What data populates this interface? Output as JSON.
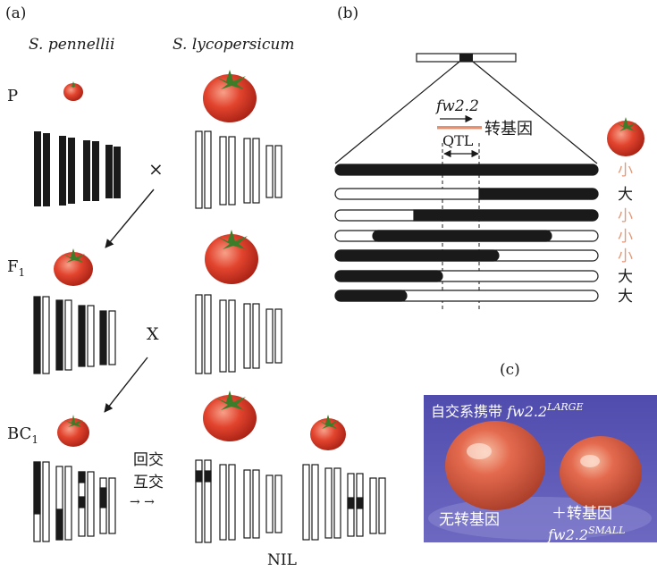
{
  "panel_a": {
    "label": "(a)",
    "species_left": "S. pennellii",
    "species_right": "S. lycopersicum",
    "gen_p": "P",
    "gen_f1_base": "F",
    "gen_f1_sub": "1",
    "gen_bc1_base": "BC",
    "gen_bc1_sub": "1",
    "cross1": "×",
    "cross2": "X",
    "backcross_line1": "回交",
    "backcross_line2": "互交",
    "backcross_arrows": "→ →",
    "nil": "NIL"
  },
  "panel_b": {
    "label": "(b)",
    "gene": "fw2.2",
    "qtl": "QTL",
    "transgene": "转基因",
    "phenotypes": [
      "小",
      "大",
      "小",
      "小",
      "小",
      "大",
      "大"
    ]
  },
  "panel_c": {
    "label": "(c)",
    "title_prefix": "自交系携带 ",
    "title_gene": "fw2.2",
    "title_sup": "LARGE",
    "left_label": "无转基因",
    "right_label": "＋转基因",
    "right_gene": "fw2.2",
    "right_sup": "SMALL"
  },
  "colors": {
    "dark": "#1a1a1a",
    "small_phenotype": "#e29a7c",
    "tomato": "#d9412e",
    "photo_bg": "#5a56b2",
    "transgene_bar": "#e6906f"
  }
}
